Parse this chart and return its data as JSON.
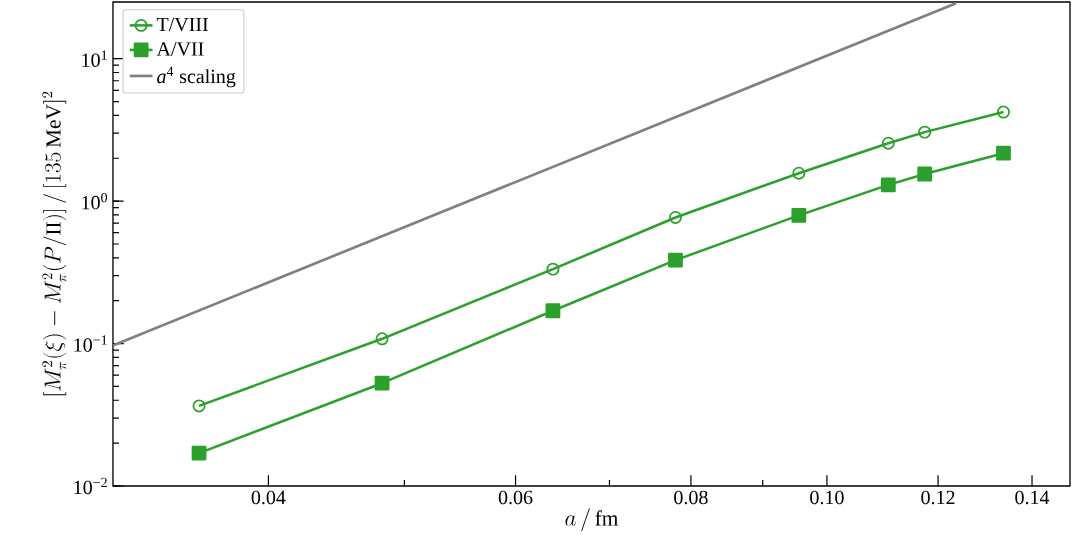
{
  "chart_data": {
    "type": "line",
    "xlabel": "a\\,/\\,\\mathrm{fm}",
    "ylabel": "[M_\\pi^2(\\xi) - M_\\pi^2(P/\\mathrm{II})]\\,/\\,[135\\,\\mathrm{MeV}]^2",
    "log": "xy",
    "xlim": [
      0.031,
      0.149
    ],
    "ylim": [
      0.01,
      25
    ],
    "xticks": [
      0.04,
      {
        "value": 0.05,
        "label": null
      },
      0.06,
      {
        "value": 0.07,
        "label": null
      },
      0.08,
      {
        "value": 0.09,
        "label": null
      },
      {
        "value": 0.1,
        "label": "0.10"
      },
      0.12,
      0.14
    ],
    "yticks": [
      {
        "value": 0.01,
        "label": "10$^{−2}$"
      },
      {
        "value": 0.1,
        "label": "10$^{−1}$"
      },
      {
        "value": 1,
        "label": "10$^{0}$"
      },
      {
        "value": 10,
        "label": "10$^{1}$"
      }
    ],
    "legend": "top left",
    "grid": false,
    "series": [
      {
        "name": "T/VIII",
        "color": "#2ca02c",
        "marker": "circle",
        "x": [
          0.0357,
          0.0482,
          0.0638,
          0.078,
          0.0955,
          0.1106,
          0.1174,
          0.1336
        ],
        "values": [
          0.0365,
          0.108,
          0.333,
          0.768,
          1.57,
          2.55,
          3.05,
          4.22
        ]
      },
      {
        "name": "A/VII",
        "color": "#2ca02c",
        "marker": "square",
        "x": [
          0.0357,
          0.0482,
          0.0638,
          0.078,
          0.0955,
          0.1106,
          0.1174,
          0.1336
        ],
        "values": [
          0.017,
          0.0527,
          0.17,
          0.385,
          0.795,
          1.3,
          1.55,
          2.17
        ]
      },
      {
        "name": "*a*$^{4}$ scaling",
        "color": "#808080",
        "marker": "none",
        "x": [
          0.031,
          0.1236
        ],
        "values": [
          0.097,
          24.5
        ]
      }
    ]
  }
}
